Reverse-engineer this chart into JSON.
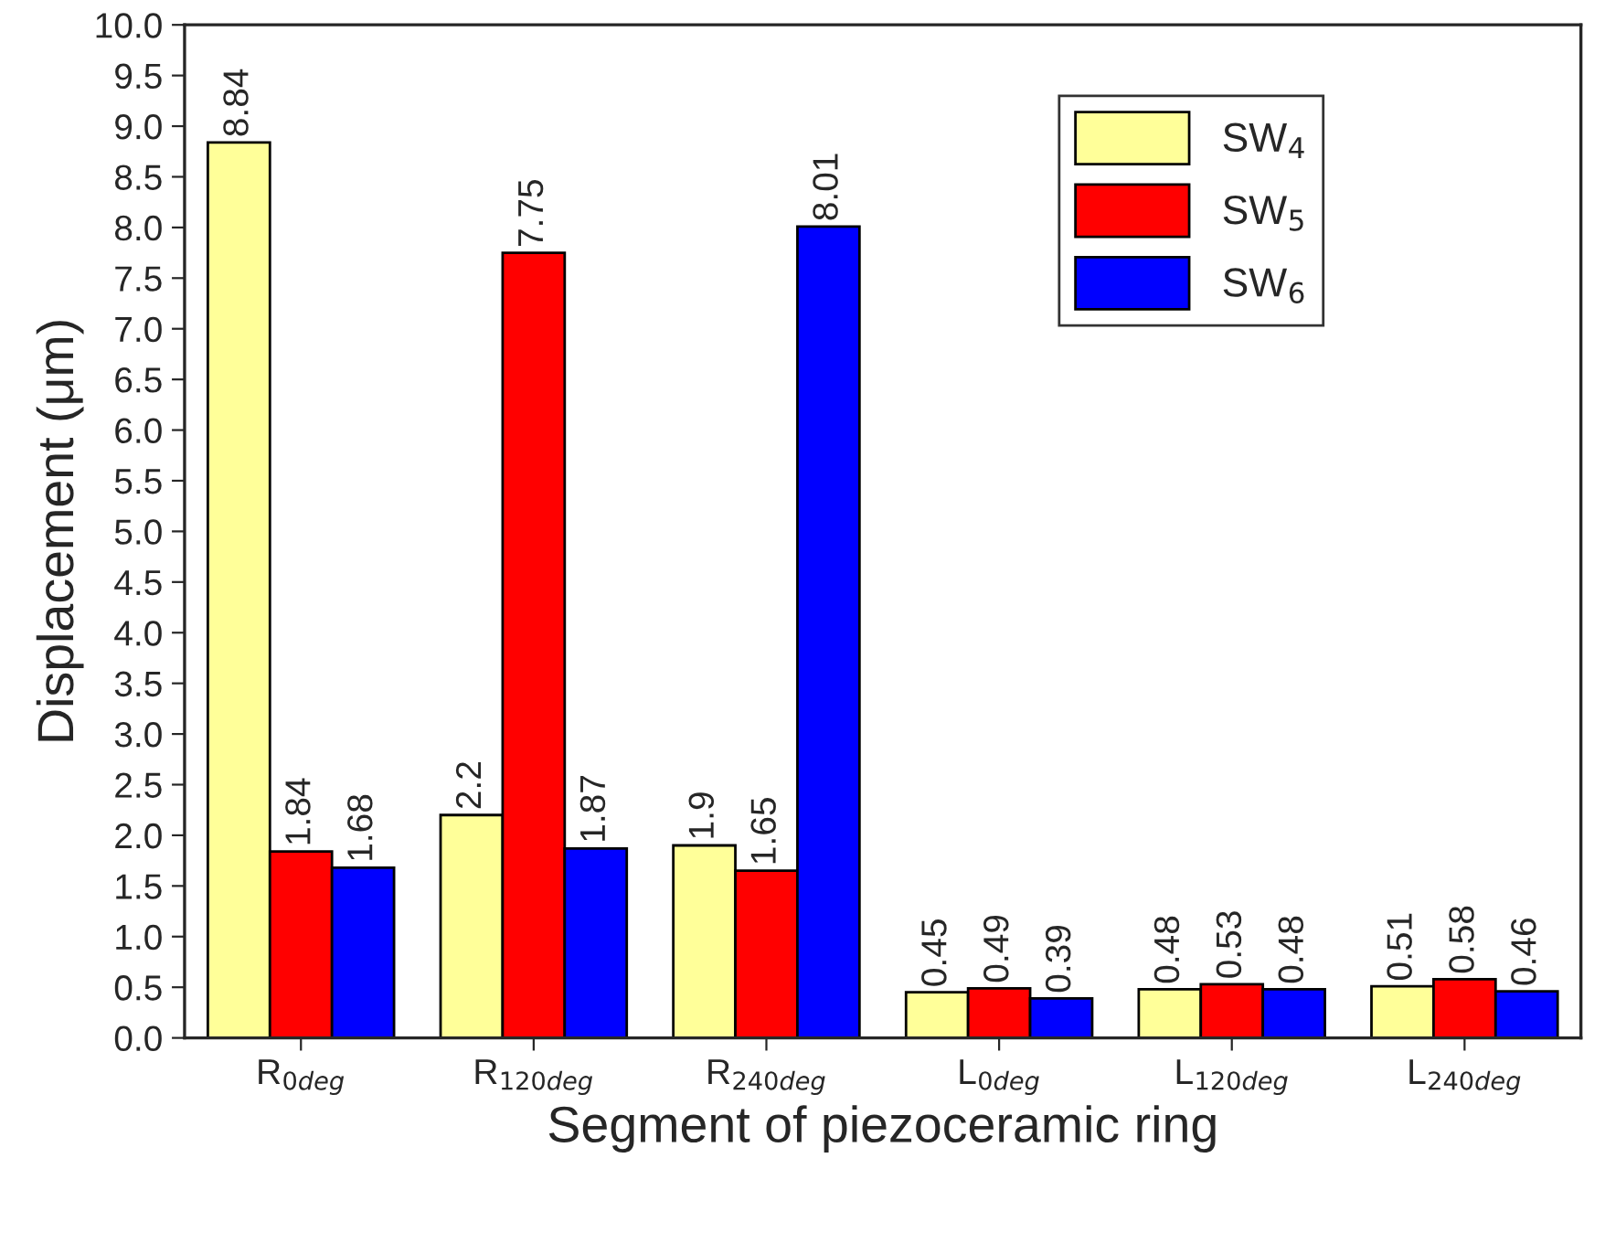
{
  "chart_data": {
    "type": "bar",
    "xlabel": "Segment of piezoceramic ring",
    "ylabel": "Displacement (μm)",
    "categories": [
      "R$_{0deg}$",
      "R$_{120deg}$",
      "R$_{240deg}$",
      "L$_{0deg}$",
      "L$_{120deg}$",
      "L$_{240deg}$"
    ],
    "series": [
      {
        "name": "SW$_{4}$",
        "color": "#ffff99",
        "values": [
          8.84,
          2.2,
          1.9,
          0.45,
          0.48,
          0.51
        ]
      },
      {
        "name": "SW$_{5}$",
        "color": "#ff0000",
        "values": [
          1.84,
          7.75,
          1.65,
          0.49,
          0.53,
          0.58
        ]
      },
      {
        "name": "SW$_{6}$",
        "color": "#0000ff",
        "values": [
          1.68,
          1.87,
          8.01,
          0.39,
          0.48,
          0.46
        ]
      }
    ],
    "ylim": [
      0,
      10
    ],
    "yticks": [
      {
        "value": 0,
        "label": "0.0"
      },
      {
        "value": 0.5,
        "label": "0.5"
      },
      {
        "value": 1,
        "label": "1.0"
      },
      {
        "value": 1.5,
        "label": "1.5"
      },
      {
        "value": 2,
        "label": "2.0"
      },
      {
        "value": 2.5,
        "label": "2.5"
      },
      {
        "value": 3,
        "label": "3.0"
      },
      {
        "value": 3.5,
        "label": "3.5"
      },
      {
        "value": 4,
        "label": "4.0"
      },
      {
        "value": 4.5,
        "label": "4.5"
      },
      {
        "value": 5,
        "label": "5.0"
      },
      {
        "value": 5.5,
        "label": "5.5"
      },
      {
        "value": 6,
        "label": "6.0"
      },
      {
        "value": 6.5,
        "label": "6.5"
      },
      {
        "value": 7,
        "label": "7.0"
      },
      {
        "value": 7.5,
        "label": "7.5"
      },
      {
        "value": 8,
        "label": "8.0"
      },
      {
        "value": 8.5,
        "label": "8.5"
      },
      {
        "value": 9,
        "label": "9.0"
      },
      {
        "value": 9.5,
        "label": "9.5"
      },
      {
        "value": 10,
        "label": "10.0"
      }
    ],
    "data_labels": true,
    "legend": "top right",
    "grid": false
  }
}
